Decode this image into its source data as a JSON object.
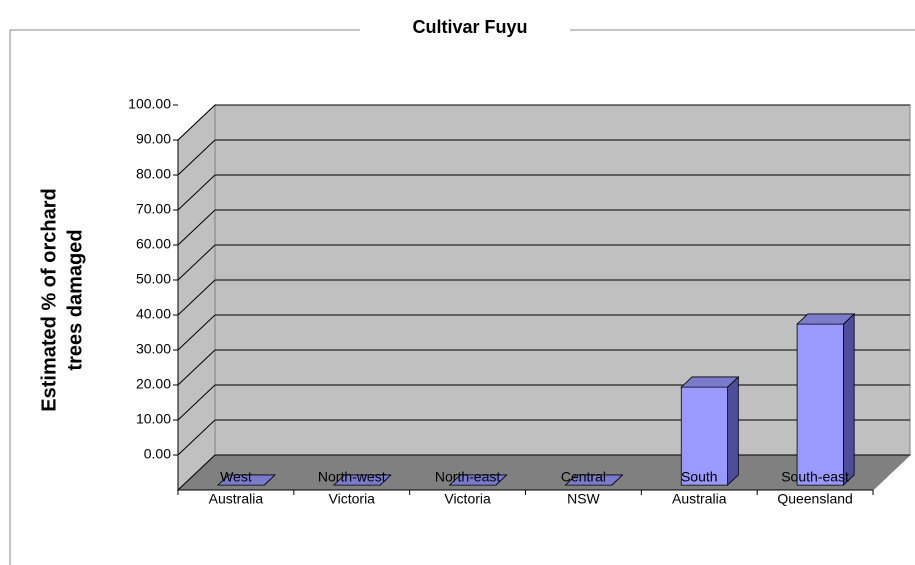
{
  "chart_data": {
    "type": "bar3d",
    "title": "Cultivar  Fuyu",
    "y_label": [
      "Estimated % of orchard",
      "trees damaged"
    ],
    "categories": [
      [
        "West",
        "Australia"
      ],
      [
        "North-west",
        "Victoria"
      ],
      [
        "North-east",
        "Victoria"
      ],
      [
        "Central",
        "NSW"
      ],
      [
        "South",
        "Australia"
      ],
      [
        "South-east",
        "Queensland"
      ]
    ],
    "values": [
      0,
      0,
      0,
      0,
      28,
      46
    ],
    "color": "#9999ff",
    "ylim": [
      0,
      100
    ],
    "yticks": [
      {
        "value": 0,
        "label": "0.00"
      },
      {
        "value": 10,
        "label": "10.00"
      },
      {
        "value": 20,
        "label": "20.00"
      },
      {
        "value": 30,
        "label": "30.00"
      },
      {
        "value": 40,
        "label": "40.00"
      },
      {
        "value": 50,
        "label": "50.00"
      },
      {
        "value": 60,
        "label": "60.00"
      },
      {
        "value": 70,
        "label": "70.00"
      },
      {
        "value": 80,
        "label": "80.00"
      },
      {
        "value": 90,
        "label": "90.00"
      },
      {
        "value": 100,
        "label": "100.00"
      }
    ],
    "grid": true
  }
}
